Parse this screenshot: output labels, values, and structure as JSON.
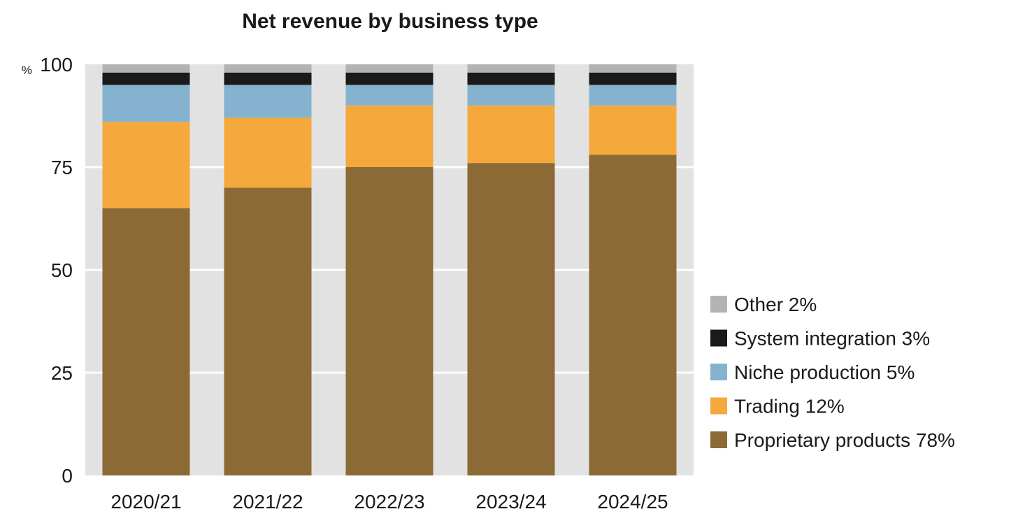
{
  "chart_data": {
    "type": "bar",
    "stacked": true,
    "title": "Net revenue by business type",
    "ylabel": "%",
    "ylim": [
      0,
      100
    ],
    "yticks": [
      "0",
      "25",
      "50",
      "75",
      "100"
    ],
    "categories": [
      "2020/21",
      "2021/22",
      "2022/23",
      "2023/24",
      "2024/25"
    ],
    "grid": true,
    "legend_position": "right",
    "series": [
      {
        "name": "Proprietary products 78%",
        "color": "#8b6a35",
        "values": [
          65,
          70,
          75,
          76,
          78
        ]
      },
      {
        "name": "Trading 12%",
        "color": "#f5a83c",
        "values": [
          21,
          17,
          15,
          14,
          12
        ]
      },
      {
        "name": "Niche production 5%",
        "color": "#85b3cf",
        "values": [
          9,
          8,
          5,
          5,
          5
        ]
      },
      {
        "name": "System integration 3%",
        "color": "#1a1a1a",
        "values": [
          3,
          3,
          3,
          3,
          3
        ]
      },
      {
        "name": "Other 2%",
        "color": "#b3b3b3",
        "values": [
          2,
          2,
          2,
          2,
          2
        ]
      }
    ],
    "legend_order": [
      4,
      3,
      2,
      1,
      0
    ],
    "plot_background": "#e2e2e2"
  }
}
